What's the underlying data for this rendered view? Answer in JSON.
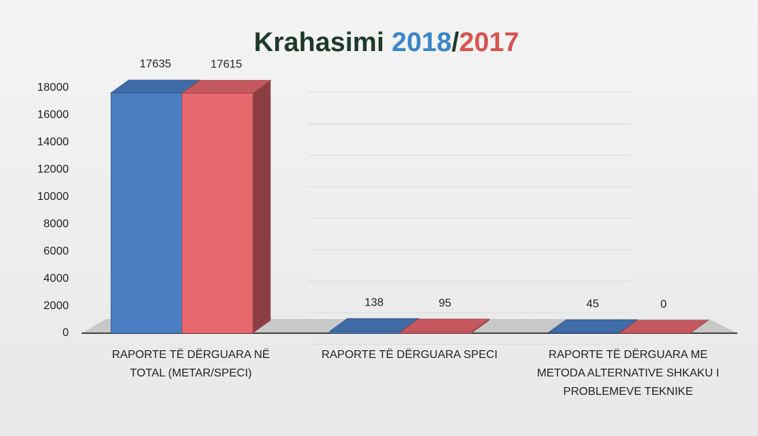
{
  "chart_data": {
    "type": "bar3d",
    "title": "Krahasimi",
    "title_separator": "/",
    "categories": [
      "RAPORTE TË DËRGUARA NË TOTAL (METAR/SPECI)",
      "RAPORTE TË DËRGUARA SPECI",
      "RAPORTE TË DËRGUARA ME METODA ALTERNATIVE SHKAKU I PROBLEMEVE TEKNIKE"
    ],
    "series": [
      {
        "name": "2018",
        "color": "#4a7fc4",
        "values": [
          17635,
          138,
          45
        ]
      },
      {
        "name": "2017",
        "color": "#e8686e",
        "values": [
          17615,
          95,
          0
        ]
      }
    ],
    "ylim": [
      0,
      18000
    ],
    "yticks": [
      0,
      2000,
      4000,
      6000,
      8000,
      10000,
      12000,
      14000,
      16000,
      18000
    ],
    "grid": true
  }
}
